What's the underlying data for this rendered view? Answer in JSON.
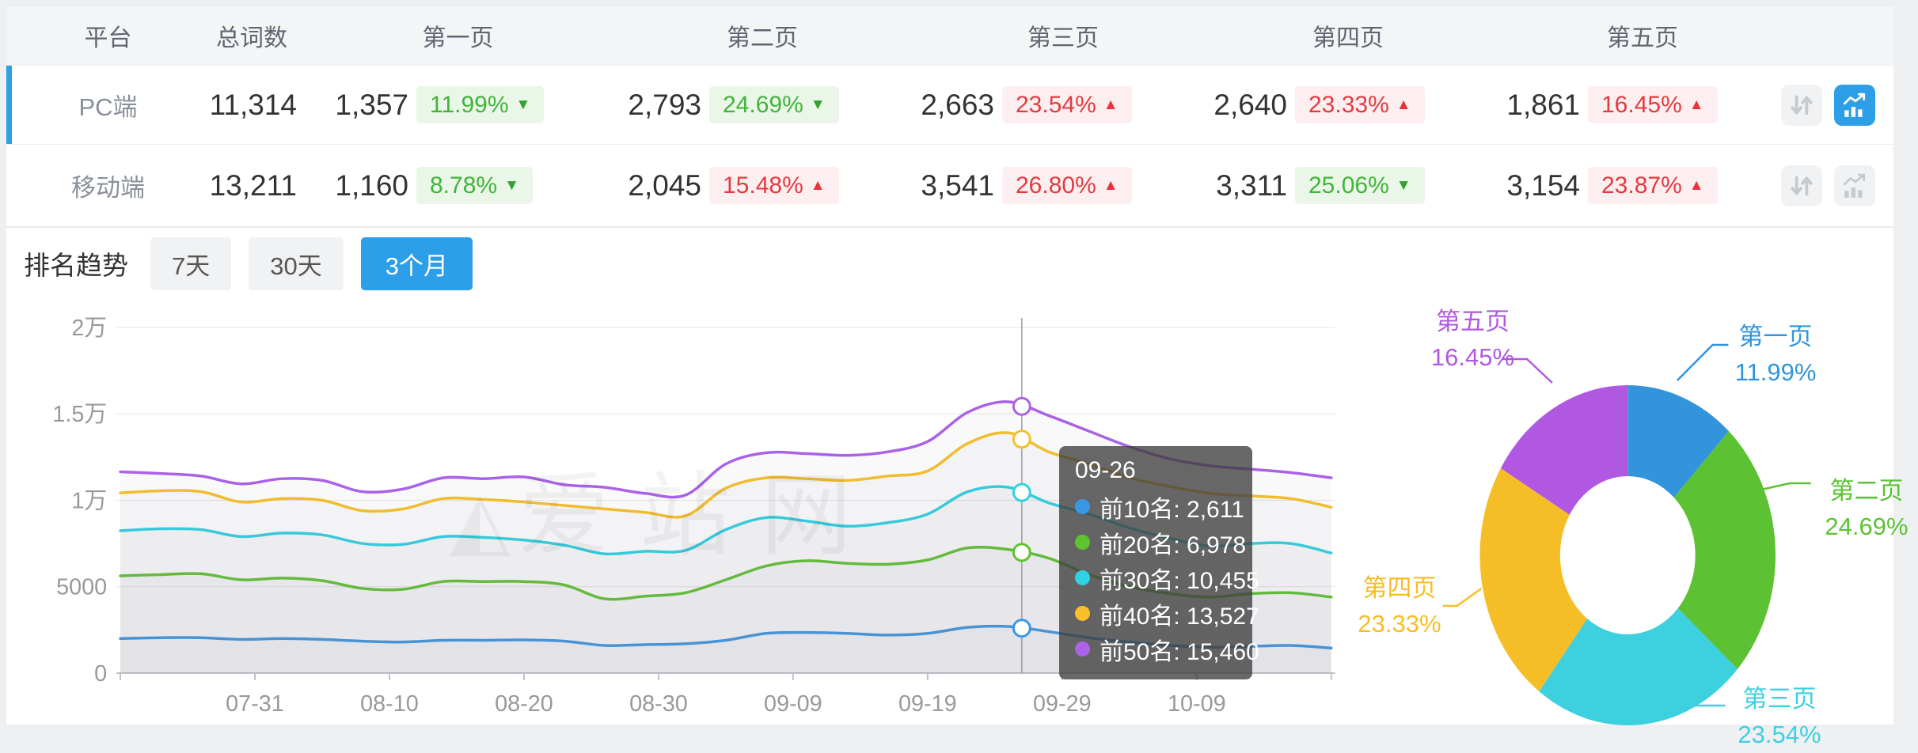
{
  "table": {
    "headers": {
      "platform": "平台",
      "total": "总词数",
      "pages": [
        "第一页",
        "第二页",
        "第三页",
        "第四页",
        "第五页"
      ]
    },
    "rows": [
      {
        "platform": "PC端",
        "total": "11,314",
        "selected": true,
        "chart_btn_active": true,
        "pages": [
          {
            "count": "1,357",
            "pct": "11.99%",
            "dir": "down",
            "trend": "good"
          },
          {
            "count": "2,793",
            "pct": "24.69%",
            "dir": "down",
            "trend": "good"
          },
          {
            "count": "2,663",
            "pct": "23.54%",
            "dir": "up",
            "trend": "bad"
          },
          {
            "count": "2,640",
            "pct": "23.33%",
            "dir": "up",
            "trend": "bad"
          },
          {
            "count": "1,861",
            "pct": "16.45%",
            "dir": "up",
            "trend": "bad"
          }
        ]
      },
      {
        "platform": "移动端",
        "total": "13,211",
        "selected": false,
        "chart_btn_active": false,
        "pages": [
          {
            "count": "1,160",
            "pct": "8.78%",
            "dir": "down",
            "trend": "good"
          },
          {
            "count": "2,045",
            "pct": "15.48%",
            "dir": "up",
            "trend": "bad"
          },
          {
            "count": "3,541",
            "pct": "26.80%",
            "dir": "up",
            "trend": "bad"
          },
          {
            "count": "3,311",
            "pct": "25.06%",
            "dir": "down",
            "trend": "good"
          },
          {
            "count": "3,154",
            "pct": "23.87%",
            "dir": "up",
            "trend": "bad"
          }
        ]
      }
    ]
  },
  "trend": {
    "label": "排名趋势",
    "tabs": [
      {
        "label": "7天",
        "active": false
      },
      {
        "label": "30天",
        "active": false
      },
      {
        "label": "3个月",
        "active": true
      }
    ]
  },
  "watermark": "爱站网",
  "tooltip": {
    "title": "09-26",
    "items": [
      {
        "name": "前10名",
        "value": "2,611",
        "color": "#3a97e5"
      },
      {
        "name": "前20名",
        "value": "6,978",
        "color": "#5ec32e"
      },
      {
        "name": "前30名",
        "value": "10,455",
        "color": "#2fd2e2"
      },
      {
        "name": "前40名",
        "value": "13,527",
        "color": "#f7bf29"
      },
      {
        "name": "前50名",
        "value": "15,460",
        "color": "#a962e8"
      }
    ]
  },
  "chart_data": [
    {
      "type": "line",
      "title": "排名趋势 (3个月)",
      "x_start": "07-21",
      "x_end": "10-19",
      "sample_interval_days": 3,
      "ylim": [
        0,
        20000
      ],
      "grid": true,
      "y_ticks": [
        {
          "label": "0",
          "value": 0
        },
        {
          "label": "5000",
          "value": 5000
        },
        {
          "label": "1万",
          "value": 10000
        },
        {
          "label": "1.5万",
          "value": 15000
        },
        {
          "label": "2万",
          "value": 20000
        }
      ],
      "x_ticks": [
        {
          "label": "07-31",
          "day": 10
        },
        {
          "label": "08-10",
          "day": 20
        },
        {
          "label": "08-20",
          "day": 30
        },
        {
          "label": "08-30",
          "day": 40
        },
        {
          "label": "09-09",
          "day": 50
        },
        {
          "label": "09-19",
          "day": 60
        },
        {
          "label": "09-29",
          "day": 70
        },
        {
          "label": "10-09",
          "day": 80
        }
      ],
      "crosshair": {
        "date": "09-26",
        "day": 67
      },
      "series": [
        {
          "name": "前10名",
          "color": "#3a97e5",
          "values": [
            2000,
            2050,
            2050,
            1950,
            2000,
            1950,
            1850,
            1800,
            1900,
            1900,
            1920,
            1850,
            1600,
            1650,
            1700,
            1900,
            2300,
            2350,
            2300,
            2200,
            2300,
            2650,
            2700,
            2400,
            2050,
            1800,
            1600,
            1500,
            1550,
            1600,
            1450
          ]
        },
        {
          "name": "前20名",
          "color": "#5ec32e",
          "values": [
            5630,
            5700,
            5750,
            5400,
            5500,
            5350,
            4900,
            4850,
            5300,
            5300,
            5300,
            5100,
            4300,
            4450,
            4650,
            5400,
            6200,
            6500,
            6350,
            6300,
            6550,
            7250,
            7150,
            6650,
            5700,
            5000,
            4600,
            4400,
            4600,
            4650,
            4400
          ]
        },
        {
          "name": "前30名",
          "color": "#2fd2e2",
          "values": [
            8240,
            8350,
            8300,
            7900,
            8100,
            8000,
            7500,
            7450,
            7900,
            7850,
            7700,
            7400,
            6900,
            7050,
            7100,
            8300,
            9000,
            8800,
            8500,
            8700,
            9200,
            10500,
            10750,
            9850,
            9200,
            8400,
            7800,
            7350,
            7500,
            7500,
            6950
          ]
        },
        {
          "name": "前40名",
          "color": "#f7bf29",
          "values": [
            10430,
            10550,
            10500,
            9900,
            10100,
            10000,
            9400,
            9500,
            10100,
            10050,
            9900,
            9700,
            9500,
            9300,
            9100,
            10700,
            11300,
            11250,
            11150,
            11400,
            11700,
            13300,
            13900,
            12800,
            12100,
            11300,
            10800,
            10400,
            10250,
            10100,
            9600
          ]
        },
        {
          "name": "前50名",
          "color": "#a962e8",
          "values": [
            11650,
            11550,
            11400,
            10950,
            11250,
            11150,
            10500,
            10650,
            11300,
            11250,
            11350,
            10900,
            10750,
            10400,
            10300,
            12100,
            12750,
            12700,
            12600,
            12800,
            13400,
            15100,
            15700,
            14900,
            14000,
            13100,
            12400,
            12000,
            11800,
            11600,
            11300
          ]
        }
      ]
    },
    {
      "type": "pie",
      "donut": true,
      "labels": [
        "第一页",
        "第二页",
        "第三页",
        "第四页",
        "第五页"
      ],
      "values": [
        11.99,
        24.69,
        23.54,
        23.33,
        16.45
      ],
      "display_pcts": [
        "11.99%",
        "24.69%",
        "23.54%",
        "23.33%",
        "16.45%"
      ],
      "colors": [
        "#3295db",
        "#5cc233",
        "#3dd0df",
        "#f6be26",
        "#b158e3"
      ]
    }
  ]
}
